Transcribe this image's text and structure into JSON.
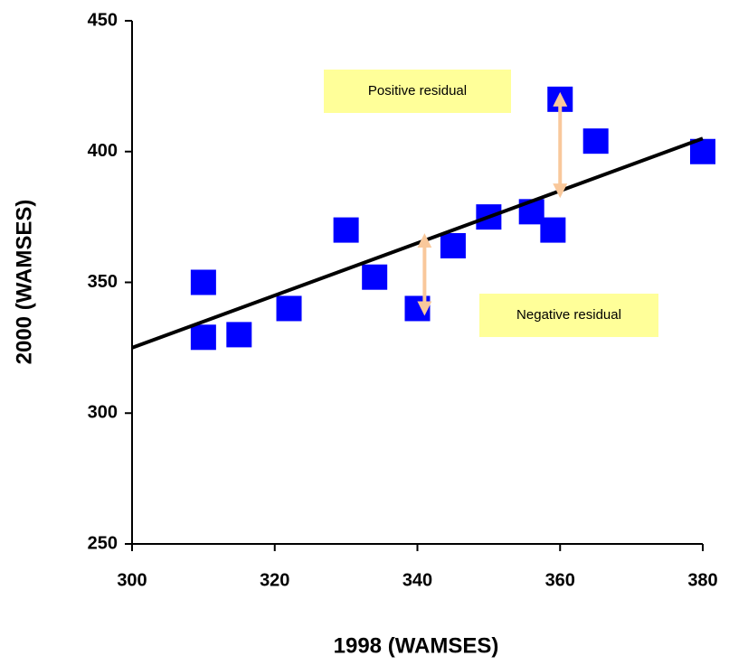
{
  "chart_data": {
    "type": "scatter",
    "x_label": "1998 (WAMSES)",
    "y_label": "2000 (WAMSES)",
    "x": [
      310,
      310,
      315,
      322,
      330,
      334,
      340,
      345,
      350,
      356,
      359,
      360,
      365,
      380
    ],
    "series": [
      {
        "color": "#0000ff",
        "values": [
          350,
          329,
          330,
          340,
          370,
          352,
          340,
          364,
          375,
          377,
          370,
          420,
          404,
          400
        ]
      }
    ],
    "trendline": {
      "color": "#000000",
      "x": [
        300,
        380
      ],
      "y": [
        325,
        405
      ]
    },
    "residual_arrows": [
      {
        "label": "Positive residual",
        "x": 360,
        "from": 420,
        "to": 385
      },
      {
        "label": "Negative residual",
        "x": 341,
        "from": 340,
        "to": 366
      }
    ],
    "arrow_color": "#f9c89b",
    "note_color": "#ffff99",
    "xlim": [
      300,
      380
    ],
    "xticks": [
      300,
      320,
      340,
      360,
      380
    ],
    "ylim": [
      250,
      450
    ],
    "yticks": [
      250,
      300,
      350,
      400,
      450
    ],
    "grid": false
  }
}
